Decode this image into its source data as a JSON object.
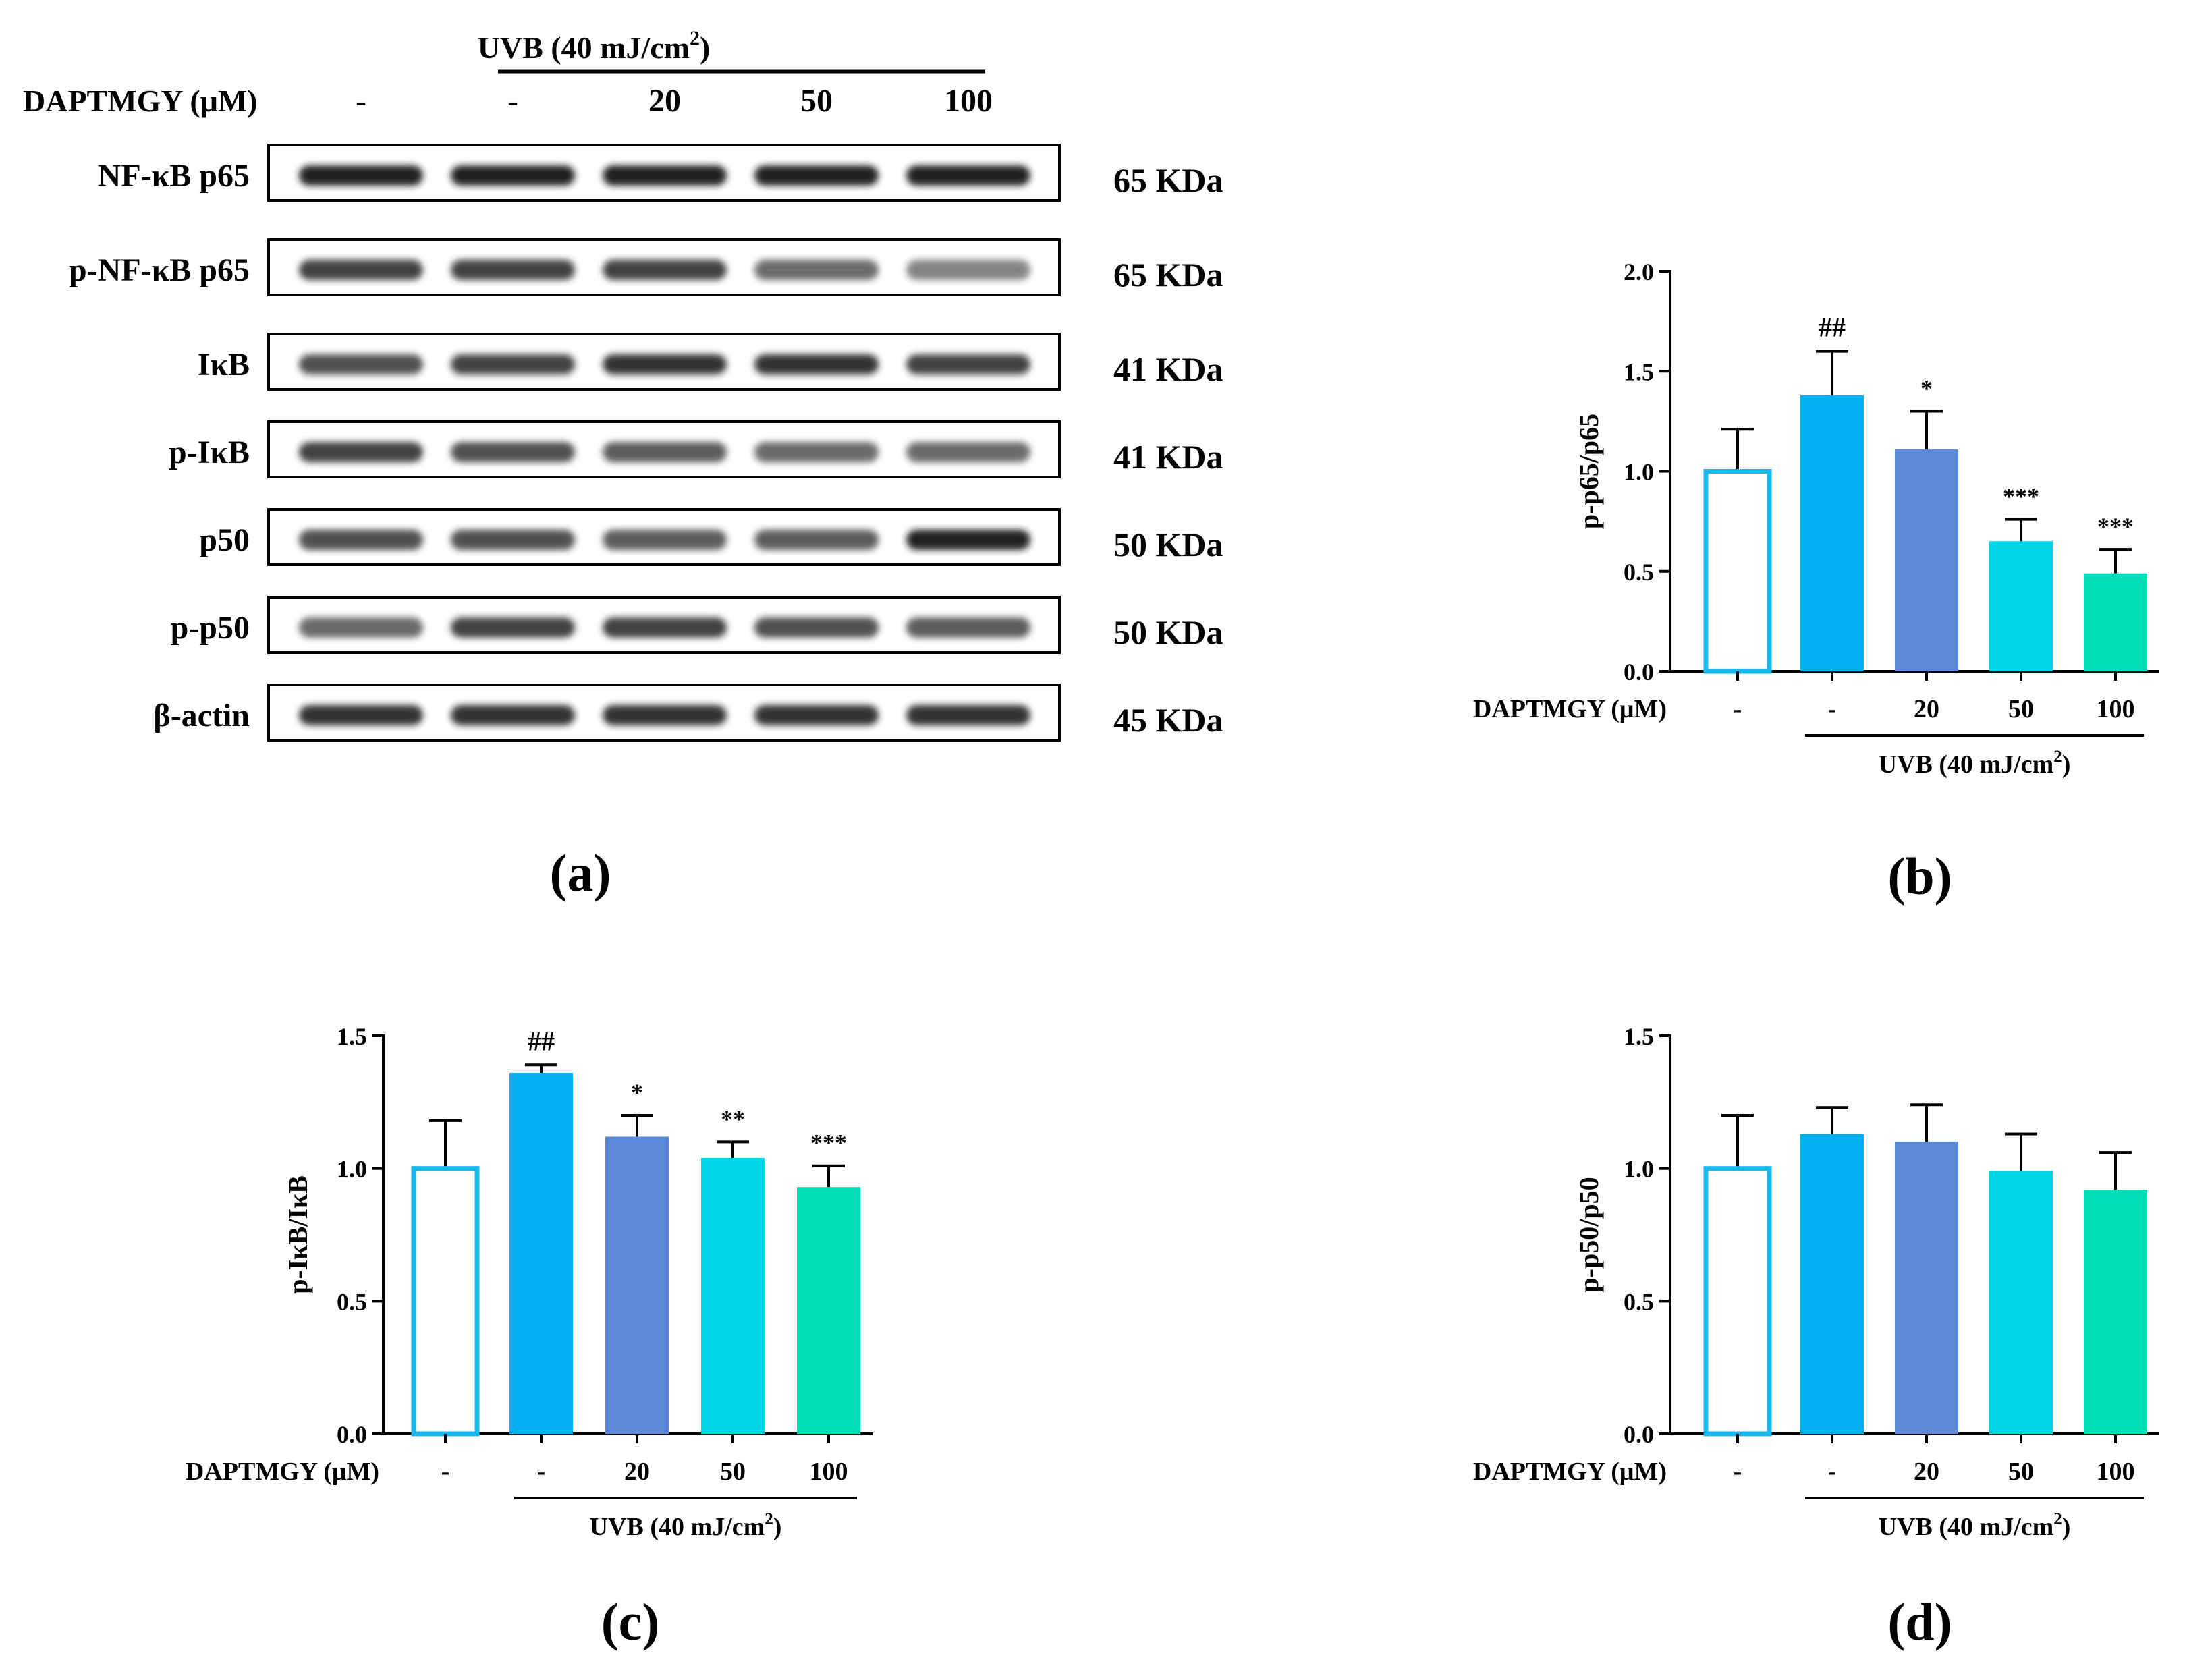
{
  "blot": {
    "dose_label": "DAPTMGY (μM)",
    "uvb_label": "UVB (40 mJ/cm",
    "uvb_sup": "2",
    "uvb_close": ")",
    "doses": [
      "-",
      "-",
      "20",
      "50",
      "100"
    ],
    "bands": [
      {
        "name": "NF-κB p65",
        "kda": "65 KDa",
        "intensity": [
          0.95,
          0.95,
          0.95,
          0.95,
          0.95
        ]
      },
      {
        "name": "p-NF-κB p65",
        "kda": "65 KDa",
        "intensity": [
          0.85,
          0.85,
          0.85,
          0.7,
          0.6
        ]
      },
      {
        "name": "IκB",
        "kda": "41 KDa",
        "intensity": [
          0.8,
          0.85,
          0.9,
          0.9,
          0.85
        ]
      },
      {
        "name": "p-IκB",
        "kda": "41 KDa",
        "intensity": [
          0.85,
          0.8,
          0.75,
          0.7,
          0.7
        ]
      },
      {
        "name": "p50",
        "kda": "50 KDa",
        "intensity": [
          0.8,
          0.8,
          0.75,
          0.75,
          0.95
        ]
      },
      {
        "name": "p-p50",
        "kda": "50 KDa",
        "intensity": [
          0.7,
          0.85,
          0.85,
          0.8,
          0.75
        ]
      },
      {
        "name": "β-actin",
        "kda": "45 KDa",
        "intensity": [
          0.9,
          0.9,
          0.9,
          0.9,
          0.9
        ]
      }
    ],
    "panel_label": "(a)"
  },
  "chart_data": [
    {
      "type": "bar",
      "panel_label": "(b)",
      "ylabel": "p-p65/p65",
      "ylim": [
        0,
        2.0
      ],
      "yticks": [
        "0.0",
        "0.5",
        "1.0",
        "1.5",
        "2.0"
      ],
      "dose_label": "DAPTMGY (μM)",
      "categories": [
        "-",
        "-",
        "20",
        "50",
        "100"
      ],
      "values": [
        1.0,
        1.38,
        1.11,
        0.65,
        0.49
      ],
      "errors": [
        0.21,
        0.22,
        0.19,
        0.11,
        0.12
      ],
      "annotations": [
        "",
        "##",
        "*",
        "***",
        "***"
      ],
      "uvb_label": "UVB (40 mJ/cm",
      "uvb_sup": "2",
      "uvb_close": ")"
    },
    {
      "type": "bar",
      "panel_label": "(c)",
      "ylabel": "p-IκB/IκB",
      "ylim": [
        0,
        1.5
      ],
      "yticks": [
        "0.0",
        "0.5",
        "1.0",
        "1.5"
      ],
      "dose_label": "DAPTMGY (μM)",
      "categories": [
        "-",
        "-",
        "20",
        "50",
        "100"
      ],
      "values": [
        1.0,
        1.36,
        1.12,
        1.04,
        0.93
      ],
      "errors": [
        0.18,
        0.03,
        0.08,
        0.06,
        0.08
      ],
      "annotations": [
        "",
        "##",
        "*",
        "**",
        "***"
      ],
      "uvb_label": "UVB (40 mJ/cm",
      "uvb_sup": "2",
      "uvb_close": ")"
    },
    {
      "type": "bar",
      "panel_label": "(d)",
      "ylabel": "p-p50/p50",
      "ylim": [
        0,
        1.5
      ],
      "yticks": [
        "0.0",
        "0.5",
        "1.0",
        "1.5"
      ],
      "dose_label": "DAPTMGY (μM)",
      "categories": [
        "-",
        "-",
        "20",
        "50",
        "100"
      ],
      "values": [
        1.0,
        1.13,
        1.1,
        0.99,
        0.92
      ],
      "errors": [
        0.2,
        0.1,
        0.14,
        0.14,
        0.14
      ],
      "annotations": [
        "",
        "",
        "",
        "",
        ""
      ],
      "uvb_label": "UVB (40 mJ/cm",
      "uvb_sup": "2",
      "uvb_close": ")"
    }
  ],
  "colors": {
    "bar_fills": [
      "#ffffff",
      "#00b0f0",
      "#5b8bd8",
      "#00d4e6",
      "#00dcb8"
    ],
    "bar_stroke_first": "#1ab8ec",
    "axis": "#000000",
    "band": "#1a1a1a"
  }
}
